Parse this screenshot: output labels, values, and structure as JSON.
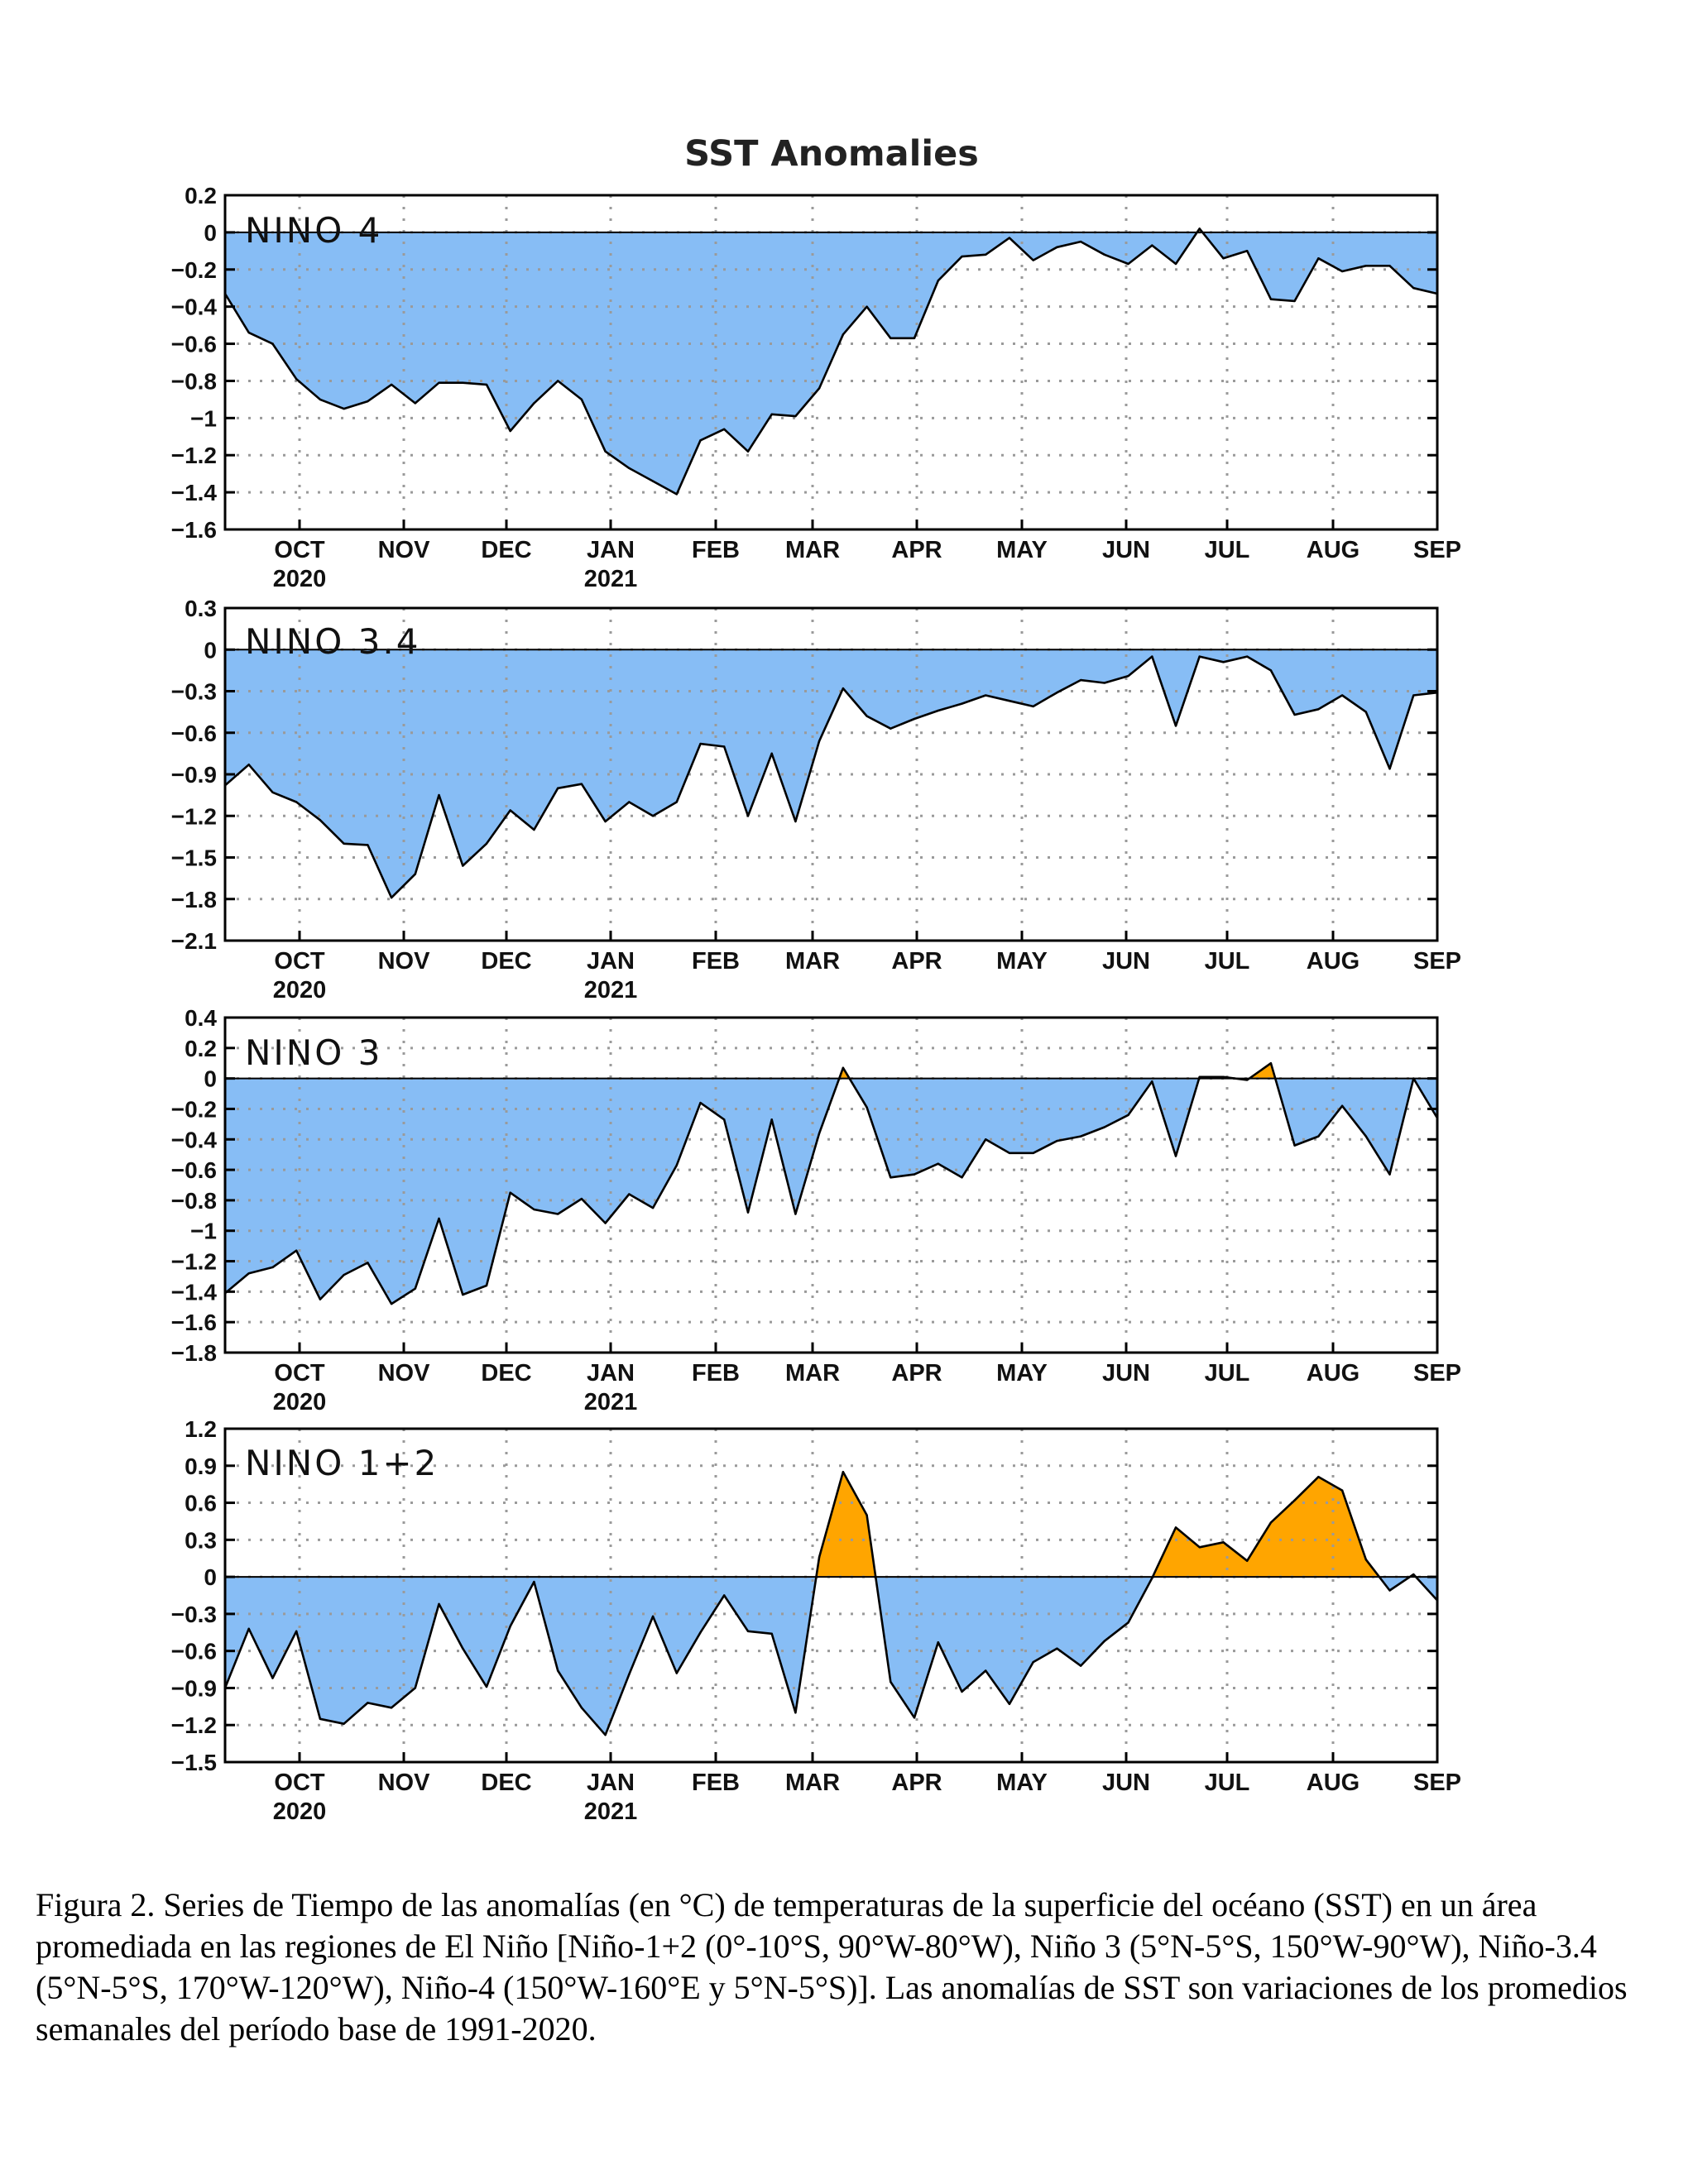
{
  "figure": {
    "title": "SST Anomalies",
    "caption": "Figura 2. Series de Tiempo de las anomalías (en °C) de temperaturas de la superficie del océano (SST) en un área promediada en las regiones de El Niño [Niño-1+2 (0°-10°S, 90°W-80°W), Niño 3 (5°N-5°S, 150°W-90°W), Niño-3.4 (5°N-5°S, 170°W-120°W), Niño-4 (150°W-160°E y 5°N-5°S)]. Las anomalías de SST son variaciones de los promedios semanales del período base de 1991-2020."
  },
  "colors": {
    "negative_fill": "#87bdf5",
    "positive_fill": "#ffa500",
    "line": "#000000",
    "grid": "#9a9a9a",
    "frame": "#000000"
  },
  "chart_data": [
    {
      "type": "area",
      "title": "NINO 4",
      "xlabel": "",
      "ylabel": "",
      "ylim": [
        -1.6,
        0.2
      ],
      "yticks": [
        "0.2",
        "0",
        "−0.2",
        "−0.4",
        "−0.6",
        "−0.8",
        "−1",
        "−1.2",
        "−1.4",
        "−1.6"
      ],
      "x_ticks": [
        {
          "month": "OCT",
          "year": "2020"
        },
        {
          "month": "NOV",
          "year": ""
        },
        {
          "month": "DEC",
          "year": ""
        },
        {
          "month": "JAN",
          "year": "2021"
        },
        {
          "month": "FEB",
          "year": ""
        },
        {
          "month": "MAR",
          "year": ""
        },
        {
          "month": "APR",
          "year": ""
        },
        {
          "month": "MAY",
          "year": ""
        },
        {
          "month": "JUN",
          "year": ""
        },
        {
          "month": "JUL",
          "year": ""
        },
        {
          "month": "AUG",
          "year": ""
        },
        {
          "month": "SEP",
          "year": ""
        }
      ],
      "grid": true,
      "fill_baseline": 0,
      "values": [
        -0.33,
        -0.54,
        -0.6,
        -0.79,
        -0.9,
        -0.95,
        -0.91,
        -0.82,
        -0.92,
        -0.81,
        -0.81,
        -0.82,
        -1.07,
        -0.92,
        -0.8,
        -0.9,
        -1.18,
        -1.27,
        -1.34,
        -1.41,
        -1.12,
        -1.06,
        -1.18,
        -0.98,
        -0.99,
        -0.84,
        -0.55,
        -0.4,
        -0.57,
        -0.57,
        -0.26,
        -0.13,
        -0.12,
        -0.03,
        -0.15,
        -0.08,
        -0.05,
        -0.12,
        -0.17,
        -0.07,
        -0.17,
        0.02,
        -0.14,
        -0.1,
        -0.36,
        -0.37,
        -0.14,
        -0.21,
        -0.18,
        -0.18,
        -0.3,
        -0.33
      ]
    },
    {
      "type": "area",
      "title": "NINO 3.4",
      "xlabel": "",
      "ylabel": "",
      "ylim": [
        -2.1,
        0.3
      ],
      "yticks": [
        "0.3",
        "0",
        "−0.3",
        "−0.6",
        "−0.9",
        "−1.2",
        "−1.5",
        "−1.8",
        "−2.1"
      ],
      "x_ticks": [
        {
          "month": "OCT",
          "year": "2020"
        },
        {
          "month": "NOV",
          "year": ""
        },
        {
          "month": "DEC",
          "year": ""
        },
        {
          "month": "JAN",
          "year": "2021"
        },
        {
          "month": "FEB",
          "year": ""
        },
        {
          "month": "MAR",
          "year": ""
        },
        {
          "month": "APR",
          "year": ""
        },
        {
          "month": "MAY",
          "year": ""
        },
        {
          "month": "JUN",
          "year": ""
        },
        {
          "month": "JUL",
          "year": ""
        },
        {
          "month": "AUG",
          "year": ""
        },
        {
          "month": "SEP",
          "year": ""
        }
      ],
      "grid": true,
      "fill_baseline": 0,
      "values": [
        -0.98,
        -0.83,
        -1.03,
        -1.1,
        -1.23,
        -1.4,
        -1.41,
        -1.79,
        -1.62,
        -1.05,
        -1.56,
        -1.4,
        -1.16,
        -1.3,
        -1.0,
        -0.97,
        -1.24,
        -1.1,
        -1.2,
        -1.1,
        -0.68,
        -0.7,
        -1.2,
        -0.75,
        -1.24,
        -0.66,
        -0.28,
        -0.48,
        -0.57,
        -0.5,
        -0.44,
        -0.39,
        -0.33,
        -0.37,
        -0.41,
        -0.31,
        -0.22,
        -0.24,
        -0.19,
        -0.05,
        -0.55,
        -0.05,
        -0.09,
        -0.05,
        -0.15,
        -0.47,
        -0.43,
        -0.33,
        -0.45,
        -0.86,
        -0.33,
        -0.31
      ]
    },
    {
      "type": "area",
      "title": "NINO 3",
      "xlabel": "",
      "ylabel": "",
      "ylim": [
        -1.8,
        0.4
      ],
      "yticks": [
        "0.4",
        "0.2",
        "0",
        "−0.2",
        "−0.4",
        "−0.6",
        "−0.8",
        "−1",
        "−1.2",
        "−1.4",
        "−1.6",
        "−1.8"
      ],
      "x_ticks": [
        {
          "month": "OCT",
          "year": "2020"
        },
        {
          "month": "NOV",
          "year": ""
        },
        {
          "month": "DEC",
          "year": ""
        },
        {
          "month": "JAN",
          "year": "2021"
        },
        {
          "month": "FEB",
          "year": ""
        },
        {
          "month": "MAR",
          "year": ""
        },
        {
          "month": "APR",
          "year": ""
        },
        {
          "month": "MAY",
          "year": ""
        },
        {
          "month": "JUN",
          "year": ""
        },
        {
          "month": "JUL",
          "year": ""
        },
        {
          "month": "AUG",
          "year": ""
        },
        {
          "month": "SEP",
          "year": ""
        }
      ],
      "grid": true,
      "fill_baseline": 0,
      "values": [
        -1.41,
        -1.28,
        -1.24,
        -1.13,
        -1.45,
        -1.29,
        -1.21,
        -1.48,
        -1.38,
        -0.92,
        -1.42,
        -1.36,
        -0.75,
        -0.86,
        -0.89,
        -0.79,
        -0.95,
        -0.76,
        -0.85,
        -0.57,
        -0.16,
        -0.27,
        -0.88,
        -0.27,
        -0.89,
        -0.36,
        0.07,
        -0.19,
        -0.65,
        -0.63,
        -0.56,
        -0.65,
        -0.4,
        -0.49,
        -0.49,
        -0.41,
        -0.38,
        -0.32,
        -0.24,
        -0.02,
        -0.51,
        0.01,
        0.01,
        -0.01,
        0.1,
        -0.44,
        -0.38,
        -0.18,
        -0.38,
        -0.63,
        0.0,
        -0.26
      ]
    },
    {
      "type": "area",
      "title": "NINO 1+2",
      "xlabel": "",
      "ylabel": "",
      "ylim": [
        -1.5,
        1.2
      ],
      "yticks": [
        "1.2",
        "0.9",
        "0.6",
        "0.3",
        "0",
        "−0.3",
        "−0.6",
        "−0.9",
        "−1.2",
        "−1.5"
      ],
      "x_ticks": [
        {
          "month": "OCT",
          "year": "2020"
        },
        {
          "month": "NOV",
          "year": ""
        },
        {
          "month": "DEC",
          "year": ""
        },
        {
          "month": "JAN",
          "year": "2021"
        },
        {
          "month": "FEB",
          "year": ""
        },
        {
          "month": "MAR",
          "year": ""
        },
        {
          "month": "APR",
          "year": ""
        },
        {
          "month": "MAY",
          "year": ""
        },
        {
          "month": "JUN",
          "year": ""
        },
        {
          "month": "JUL",
          "year": ""
        },
        {
          "month": "AUG",
          "year": ""
        },
        {
          "month": "SEP",
          "year": ""
        }
      ],
      "grid": true,
      "fill_baseline": 0,
      "values": [
        -0.9,
        -0.42,
        -0.82,
        -0.44,
        -1.15,
        -1.19,
        -1.02,
        -1.06,
        -0.9,
        -0.22,
        -0.58,
        -0.89,
        -0.4,
        -0.04,
        -0.76,
        -1.06,
        -1.28,
        -0.79,
        -0.32,
        -0.78,
        -0.45,
        -0.15,
        -0.44,
        -0.46,
        -1.1,
        0.16,
        0.85,
        0.5,
        -0.85,
        -1.14,
        -0.53,
        -0.93,
        -0.76,
        -1.03,
        -0.69,
        -0.58,
        -0.72,
        -0.52,
        -0.37,
        -0.01,
        0.4,
        0.24,
        0.28,
        0.13,
        0.44,
        0.62,
        0.81,
        0.7,
        0.14,
        -0.11,
        0.02,
        -0.19
      ]
    }
  ]
}
